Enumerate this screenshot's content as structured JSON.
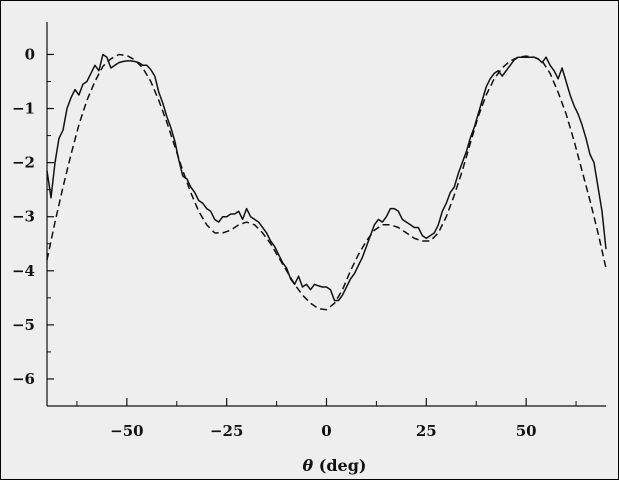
{
  "chart_data": {
    "type": "line",
    "title": "",
    "xlabel": {
      "symbol": "θ",
      "unit": " (deg)"
    },
    "ylabel": "",
    "xlim": [
      -70,
      70
    ],
    "ylim": [
      -6.5,
      0.6
    ],
    "xticks": [
      -50,
      -25,
      0,
      25,
      50
    ],
    "xtick_labels": [
      "−50",
      "−25",
      "0",
      "25",
      "50"
    ],
    "yticks": [
      0,
      -1,
      -2,
      -3,
      -4,
      -5,
      -6
    ],
    "ytick_labels": [
      "0",
      "−1",
      "−2",
      "−3",
      "−4",
      "−5",
      "−6"
    ],
    "grid": false,
    "legend": "none",
    "series": [
      {
        "style": "solid",
        "color": "#111111",
        "x": [
          -70,
          -69,
          -68,
          -67,
          -66,
          -65,
          -64,
          -63,
          -62,
          -61,
          -60,
          -59,
          -58,
          -57,
          -56,
          -55,
          -54,
          -53,
          -52,
          -51,
          -50,
          -49,
          -48,
          -47,
          -46,
          -45,
          -44,
          -43,
          -42,
          -41,
          -40,
          -39,
          -38,
          -37,
          -36,
          -35,
          -34,
          -33,
          -32,
          -31,
          -30,
          -29,
          -28,
          -27,
          -26,
          -25,
          -24,
          -23,
          -22,
          -21,
          -20,
          -19,
          -18,
          -17,
          -16,
          -15,
          -14,
          -13,
          -12,
          -11,
          -10,
          -9,
          -8,
          -7,
          -6,
          -5,
          -4,
          -3,
          -2,
          -1,
          0,
          1,
          2,
          3,
          4,
          5,
          6,
          7,
          8,
          9,
          10,
          11,
          12,
          13,
          14,
          15,
          16,
          17,
          18,
          19,
          20,
          21,
          22,
          23,
          24,
          25,
          26,
          27,
          28,
          29,
          30,
          31,
          32,
          33,
          34,
          35,
          36,
          37,
          38,
          39,
          40,
          41,
          42,
          43,
          44,
          45,
          46,
          47,
          48,
          49,
          50,
          51,
          52,
          53,
          54,
          55,
          56,
          57,
          58,
          59,
          60,
          61,
          62,
          63,
          64,
          65,
          66,
          67,
          68,
          69,
          70
        ],
        "y": [
          -2.15,
          -2.65,
          -2.0,
          -1.55,
          -1.4,
          -1.0,
          -0.8,
          -0.65,
          -0.75,
          -0.55,
          -0.5,
          -0.35,
          -0.2,
          -0.3,
          0.0,
          -0.05,
          -0.25,
          -0.2,
          -0.15,
          -0.13,
          -0.12,
          -0.12,
          -0.13,
          -0.15,
          -0.2,
          -0.2,
          -0.28,
          -0.4,
          -0.7,
          -0.9,
          -1.15,
          -1.35,
          -1.6,
          -1.95,
          -2.25,
          -2.3,
          -2.45,
          -2.55,
          -2.7,
          -2.75,
          -2.85,
          -2.9,
          -3.05,
          -3.1,
          -3.0,
          -3.0,
          -2.95,
          -2.95,
          -2.9,
          -3.05,
          -2.85,
          -3.0,
          -3.05,
          -3.1,
          -3.2,
          -3.3,
          -3.45,
          -3.55,
          -3.7,
          -3.85,
          -3.95,
          -4.15,
          -4.25,
          -4.1,
          -4.3,
          -4.25,
          -4.35,
          -4.25,
          -4.28,
          -4.3,
          -4.3,
          -4.35,
          -4.55,
          -4.55,
          -4.45,
          -4.3,
          -4.15,
          -4.05,
          -3.9,
          -3.75,
          -3.55,
          -3.35,
          -3.15,
          -3.05,
          -3.1,
          -3.0,
          -2.85,
          -2.85,
          -2.9,
          -3.05,
          -3.1,
          -3.15,
          -3.2,
          -3.2,
          -3.35,
          -3.4,
          -3.35,
          -3.3,
          -3.15,
          -2.9,
          -2.75,
          -2.55,
          -2.45,
          -2.2,
          -2.0,
          -1.8,
          -1.55,
          -1.35,
          -1.1,
          -0.85,
          -0.6,
          -0.45,
          -0.35,
          -0.3,
          -0.4,
          -0.3,
          -0.2,
          -0.1,
          -0.05,
          -0.05,
          -0.05,
          -0.05,
          -0.05,
          -0.08,
          -0.15,
          -0.05,
          -0.2,
          -0.3,
          -0.45,
          -0.25,
          -0.5,
          -0.75,
          -0.95,
          -1.1,
          -1.3,
          -1.55,
          -1.85,
          -2.0,
          -2.45,
          -2.9,
          -3.6
        ]
      },
      {
        "style": "dashed",
        "color": "#111111",
        "x": [
          -70,
          -68,
          -66,
          -64,
          -62,
          -60,
          -58,
          -56,
          -54,
          -52,
          -50,
          -48,
          -46,
          -44,
          -42,
          -40,
          -38,
          -36,
          -34,
          -32,
          -30,
          -28,
          -26,
          -24,
          -22,
          -20,
          -18,
          -16,
          -14,
          -12,
          -10,
          -8,
          -6,
          -4,
          -2,
          0,
          2,
          4,
          6,
          8,
          10,
          12,
          14,
          16,
          18,
          20,
          22,
          24,
          26,
          28,
          30,
          32,
          34,
          36,
          38,
          40,
          42,
          44,
          46,
          48,
          50,
          52,
          54,
          56,
          58,
          60,
          62,
          64,
          66,
          68,
          70
        ],
        "y": [
          -3.8,
          -3.1,
          -2.45,
          -1.85,
          -1.3,
          -0.85,
          -0.5,
          -0.22,
          -0.08,
          0.0,
          -0.02,
          -0.1,
          -0.25,
          -0.5,
          -0.85,
          -1.25,
          -1.7,
          -2.15,
          -2.55,
          -2.9,
          -3.15,
          -3.3,
          -3.3,
          -3.25,
          -3.15,
          -3.1,
          -3.15,
          -3.3,
          -3.5,
          -3.75,
          -4.0,
          -4.25,
          -4.45,
          -4.6,
          -4.7,
          -4.72,
          -4.6,
          -4.35,
          -4.0,
          -3.7,
          -3.45,
          -3.25,
          -3.15,
          -3.15,
          -3.2,
          -3.3,
          -3.4,
          -3.45,
          -3.45,
          -3.3,
          -3.0,
          -2.6,
          -2.15,
          -1.65,
          -1.15,
          -0.75,
          -0.45,
          -0.25,
          -0.12,
          -0.05,
          -0.03,
          -0.05,
          -0.12,
          -0.35,
          -0.7,
          -1.1,
          -1.6,
          -2.15,
          -2.7,
          -3.3,
          -3.95
        ]
      }
    ]
  }
}
